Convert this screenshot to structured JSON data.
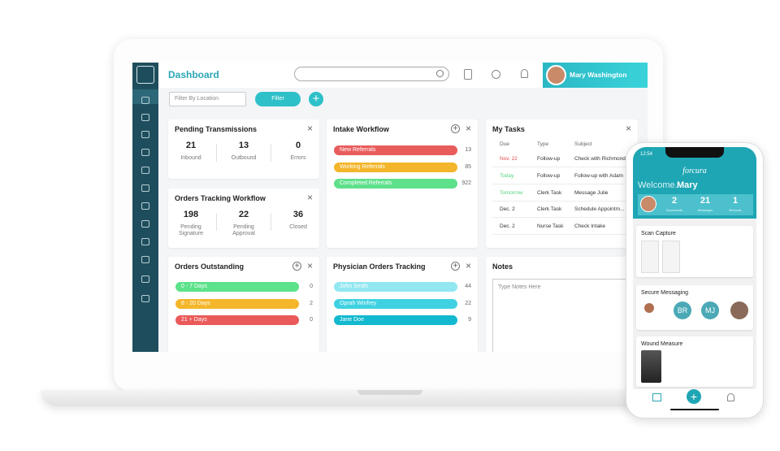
{
  "header": {
    "title": "Dashboard",
    "user": "Mary Washington"
  },
  "toolbar": {
    "filter_placeholder": "Filter By Location",
    "filter_button": "Filter"
  },
  "pending_transmissions": {
    "title": "Pending Transmissions",
    "stats": [
      {
        "value": 21,
        "label": "Inbound"
      },
      {
        "value": 13,
        "label": "Outbound"
      },
      {
        "value": 0,
        "label": "Errors"
      }
    ]
  },
  "orders_tracking": {
    "title": "Orders Tracking Workflow",
    "stats": [
      {
        "value": 198,
        "label": "Pending Signature"
      },
      {
        "value": 22,
        "label": "Pending Approval"
      },
      {
        "value": 36,
        "label": "Closed"
      }
    ]
  },
  "orders_outstanding": {
    "title": "Orders Outstanding",
    "rows": [
      {
        "label": "0 - 7 Days",
        "count": 0
      },
      {
        "label": "8 - 20 Days",
        "count": 2
      },
      {
        "label": "21 + Days",
        "count": 0
      }
    ]
  },
  "intake_workflow": {
    "title": "Intake Workflow",
    "rows": [
      {
        "label": "New Referrals",
        "count": 13
      },
      {
        "label": "Working Referrals",
        "count": 85
      },
      {
        "label": "Completed Referrals",
        "count": 922
      }
    ]
  },
  "physician_orders": {
    "title": "Physician Orders Tracking",
    "rows": [
      {
        "label": "John Smith",
        "count": 44
      },
      {
        "label": "Oprah Winfrey",
        "count": 22
      },
      {
        "label": "Jane Doe",
        "count": 9
      }
    ]
  },
  "my_tasks": {
    "title": "My Tasks",
    "columns": [
      "Due",
      "Type",
      "Subject"
    ],
    "rows": [
      [
        "Nov. 22",
        "Follow-up",
        "Check with Richmond"
      ],
      [
        "Today",
        "Follow-up",
        "Follow-up with Adam"
      ],
      [
        "Tomorrow",
        "Clerk Task",
        "Message Julie"
      ],
      [
        "Dec. 2",
        "Clerk Task",
        "Schedule Appointm..."
      ],
      [
        "Dec. 2",
        "Nurse Task",
        "Check Intake"
      ]
    ]
  },
  "notes": {
    "title": "Notes",
    "placeholder": "Type Notes Here"
  },
  "phone": {
    "time": "12:54",
    "brand": "forcura",
    "welcome": "Welcome.",
    "name": "Mary",
    "stats": [
      {
        "value": 2,
        "label": "Documents"
      },
      {
        "value": 21,
        "label": "Messages"
      },
      {
        "value": 1,
        "label": "Records"
      }
    ],
    "cards": [
      "Scan Capture",
      "Secure Messaging",
      "Wound Measure"
    ],
    "avatars": [
      "BR",
      "MJ"
    ]
  }
}
